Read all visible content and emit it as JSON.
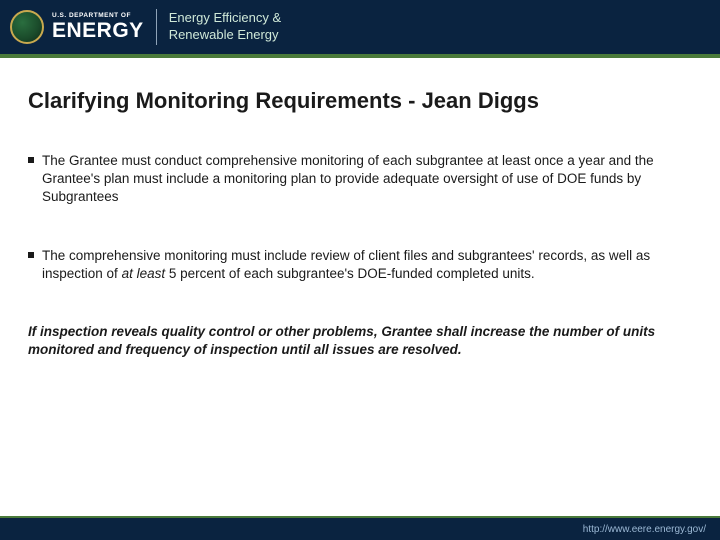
{
  "header": {
    "dept_small": "U.S. DEPARTMENT OF",
    "dept_large": "ENERGY",
    "eere_line1": "Energy Efficiency &",
    "eere_line2": "Renewable Energy"
  },
  "slide": {
    "title": "Clarifying Monitoring Requirements - Jean Diggs",
    "bullets": [
      "The Grantee must conduct comprehensive monitoring of each subgrantee at least once a year and the Grantee's plan must include a monitoring plan to provide adequate oversight of use of DOE funds by Subgrantees",
      "The comprehensive monitoring must include review of client files and subgrantees' records, as well as inspection of at least 5 percent of each subgrantee's DOE-funded completed units."
    ],
    "bullet2_pre": "The comprehensive monitoring must include review of client files and subgrantees' records, as well as inspection of ",
    "bullet2_em": "at least",
    "bullet2_post": " 5 percent of each subgrantee's DOE-funded completed units.",
    "footnote": "If inspection reveals quality control or other problems, Grantee shall increase the number of units monitored and frequency of inspection until all issues are resolved."
  },
  "footer": {
    "url": "http://www.eere.energy.gov/"
  },
  "colors": {
    "header_bg": "#0a2340",
    "green_bar": "#4a7a3a",
    "text": "#1a1a1a",
    "footer_url": "#9bb8d4"
  }
}
